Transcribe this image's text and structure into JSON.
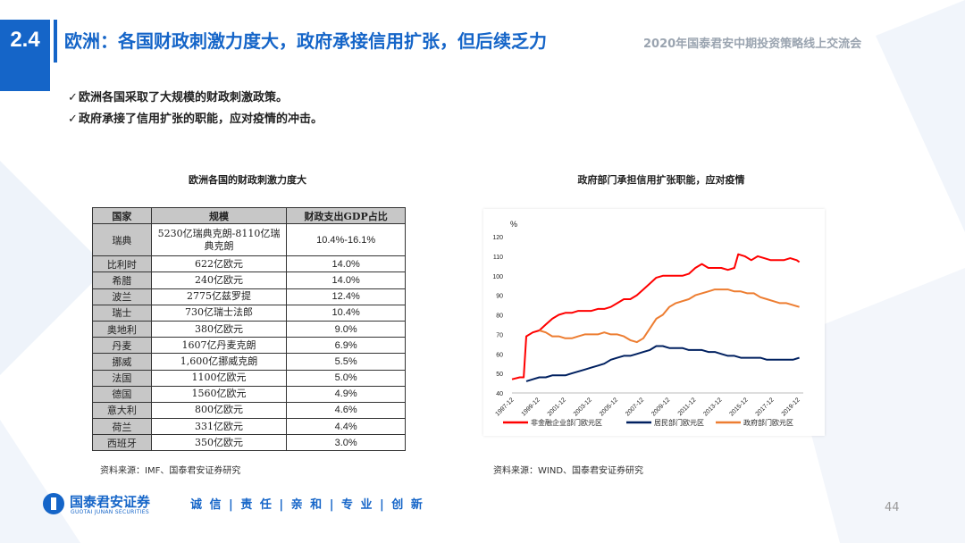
{
  "header": {
    "section": "2.4",
    "title": "欧洲：各国财政刺激力度大，政府承接信用扩张，但后续乏力",
    "event": "2020年国泰君安中期投资策略线上交流会"
  },
  "bullets": [
    "欧洲各国采取了大规模的财政刺激政策。",
    "政府承接了信用扩张的职能，应对疫情的冲击。"
  ],
  "table": {
    "title": "欧洲各国的财政刺激力度大",
    "columns": [
      "国家",
      "规模",
      "财政支出GDP占比"
    ],
    "rows": [
      {
        "country": "瑞典",
        "scale": "5230亿瑞典克朗-8110亿瑞典克朗",
        "ratio": "10.4%-16.1%"
      },
      {
        "country": "比利时",
        "scale": "622亿欧元",
        "ratio": "14.0%"
      },
      {
        "country": "希腊",
        "scale": "240亿欧元",
        "ratio": "14.0%"
      },
      {
        "country": "波兰",
        "scale": "2775亿兹罗提",
        "ratio": "12.4%"
      },
      {
        "country": "瑞士",
        "scale": "730亿瑞士法郎",
        "ratio": "10.4%"
      },
      {
        "country": "奥地利",
        "scale": "380亿欧元",
        "ratio": "9.0%"
      },
      {
        "country": "丹麦",
        "scale": "1607亿丹麦克朗",
        "ratio": "6.9%"
      },
      {
        "country": "挪威",
        "scale": "1,600亿挪威克朗",
        "ratio": "5.5%"
      },
      {
        "country": "法国",
        "scale": "1100亿欧元",
        "ratio": "5.0%"
      },
      {
        "country": "德国",
        "scale": "1560亿欧元",
        "ratio": "4.9%"
      },
      {
        "country": "意大利",
        "scale": "800亿欧元",
        "ratio": "4.6%"
      },
      {
        "country": "荷兰",
        "scale": "331亿欧元",
        "ratio": "4.4%"
      },
      {
        "country": "西班牙",
        "scale": "350亿欧元",
        "ratio": "3.0%"
      }
    ],
    "source": "资料来源：IMF、国泰君安证券研究"
  },
  "chart_title": "政府部门承担信用扩张职能，应对疫情",
  "chart_source": "资料来源：WIND、国泰君安证券研究",
  "chart_data": {
    "type": "line",
    "ylabel": "%",
    "ylim": [
      40,
      120
    ],
    "yticks": [
      40,
      50,
      60,
      70,
      80,
      90,
      100,
      110,
      120
    ],
    "x_range": [
      1997.9,
      2020.3
    ],
    "xticks": [
      "1997-12",
      "1999-12",
      "2001-12",
      "2003-12",
      "2005-12",
      "2007-12",
      "2009-12",
      "2011-12",
      "2013-12",
      "2015-12",
      "2017-12",
      "2019-12"
    ],
    "legend_position": "bottom",
    "grid": false,
    "series": [
      {
        "name": "非金融企业部门欧元区",
        "color": "#ff0000",
        "points": [
          [
            1997.9,
            47
          ],
          [
            1998.5,
            48
          ],
          [
            1998.8,
            48
          ],
          [
            1999.0,
            69
          ],
          [
            1999.5,
            71
          ],
          [
            2000.0,
            72
          ],
          [
            2000.5,
            75
          ],
          [
            2001.0,
            78
          ],
          [
            2001.5,
            80
          ],
          [
            2002.0,
            81
          ],
          [
            2002.5,
            81
          ],
          [
            2003.0,
            82
          ],
          [
            2003.5,
            82
          ],
          [
            2004.0,
            82
          ],
          [
            2004.5,
            83
          ],
          [
            2005.0,
            83
          ],
          [
            2005.5,
            84
          ],
          [
            2006.0,
            86
          ],
          [
            2006.5,
            88
          ],
          [
            2007.0,
            88
          ],
          [
            2007.5,
            90
          ],
          [
            2008.0,
            93
          ],
          [
            2008.5,
            96
          ],
          [
            2009.0,
            99
          ],
          [
            2009.5,
            100
          ],
          [
            2010.0,
            100
          ],
          [
            2010.5,
            100
          ],
          [
            2011.0,
            100
          ],
          [
            2011.5,
            101
          ],
          [
            2012.0,
            104
          ],
          [
            2012.5,
            106
          ],
          [
            2013.0,
            104
          ],
          [
            2013.5,
            104
          ],
          [
            2014.0,
            104
          ],
          [
            2014.5,
            103
          ],
          [
            2015.0,
            104
          ],
          [
            2015.3,
            111
          ],
          [
            2015.8,
            110
          ],
          [
            2016.3,
            108
          ],
          [
            2016.8,
            110
          ],
          [
            2017.3,
            109
          ],
          [
            2017.8,
            108
          ],
          [
            2018.3,
            108
          ],
          [
            2018.8,
            108
          ],
          [
            2019.3,
            109
          ],
          [
            2019.8,
            108
          ],
          [
            2020.0,
            107
          ]
        ]
      },
      {
        "name": "居民部门欧元区",
        "color": "#002060",
        "points": [
          [
            1999.0,
            46
          ],
          [
            1999.5,
            47
          ],
          [
            2000.0,
            48
          ],
          [
            2000.5,
            48
          ],
          [
            2001.0,
            49
          ],
          [
            2001.5,
            49
          ],
          [
            2002.0,
            49
          ],
          [
            2002.5,
            50
          ],
          [
            2003.0,
            51
          ],
          [
            2003.5,
            52
          ],
          [
            2004.0,
            53
          ],
          [
            2004.5,
            54
          ],
          [
            2005.0,
            55
          ],
          [
            2005.5,
            57
          ],
          [
            2006.0,
            58
          ],
          [
            2006.5,
            59
          ],
          [
            2007.0,
            59
          ],
          [
            2007.5,
            60
          ],
          [
            2008.0,
            61
          ],
          [
            2008.5,
            62
          ],
          [
            2009.0,
            64
          ],
          [
            2009.5,
            64
          ],
          [
            2010.0,
            63
          ],
          [
            2010.5,
            63
          ],
          [
            2011.0,
            63
          ],
          [
            2011.5,
            62
          ],
          [
            2012.0,
            62
          ],
          [
            2012.5,
            62
          ],
          [
            2013.0,
            61
          ],
          [
            2013.5,
            61
          ],
          [
            2014.0,
            60
          ],
          [
            2014.5,
            59
          ],
          [
            2015.0,
            59
          ],
          [
            2015.5,
            58
          ],
          [
            2016.0,
            58
          ],
          [
            2016.5,
            58
          ],
          [
            2017.0,
            58
          ],
          [
            2017.5,
            57
          ],
          [
            2018.0,
            57
          ],
          [
            2018.5,
            57
          ],
          [
            2019.0,
            57
          ],
          [
            2019.5,
            57
          ],
          [
            2020.0,
            58
          ]
        ]
      },
      {
        "name": "政府部门欧元区",
        "color": "#ed7d31",
        "points": [
          [
            2000.0,
            72
          ],
          [
            2000.5,
            71
          ],
          [
            2001.0,
            69
          ],
          [
            2001.5,
            69
          ],
          [
            2002.0,
            68
          ],
          [
            2002.5,
            68
          ],
          [
            2003.0,
            69
          ],
          [
            2003.5,
            70
          ],
          [
            2004.0,
            70
          ],
          [
            2004.5,
            70
          ],
          [
            2005.0,
            71
          ],
          [
            2005.5,
            70
          ],
          [
            2006.0,
            70
          ],
          [
            2006.5,
            69
          ],
          [
            2007.0,
            67
          ],
          [
            2007.5,
            66
          ],
          [
            2008.0,
            68
          ],
          [
            2008.5,
            73
          ],
          [
            2009.0,
            78
          ],
          [
            2009.5,
            80
          ],
          [
            2010.0,
            84
          ],
          [
            2010.5,
            86
          ],
          [
            2011.0,
            87
          ],
          [
            2011.5,
            88
          ],
          [
            2012.0,
            90
          ],
          [
            2012.5,
            91
          ],
          [
            2013.0,
            92
          ],
          [
            2013.5,
            93
          ],
          [
            2014.0,
            93
          ],
          [
            2014.5,
            93
          ],
          [
            2015.0,
            92
          ],
          [
            2015.5,
            92
          ],
          [
            2016.0,
            91
          ],
          [
            2016.5,
            91
          ],
          [
            2017.0,
            89
          ],
          [
            2017.5,
            88
          ],
          [
            2018.0,
            87
          ],
          [
            2018.5,
            86
          ],
          [
            2019.0,
            86
          ],
          [
            2019.5,
            85
          ],
          [
            2020.0,
            84
          ]
        ]
      }
    ]
  },
  "footer": {
    "logo_cn": "国泰君安证券",
    "logo_en": "GUOTAI JUNAN SECURITIES",
    "slogan": "诚 信 | 责 任 | 亲 和 | 专 业 | 创 新",
    "page": "44"
  },
  "colors": {
    "brand_blue": "#1565c8",
    "header_gray": "#c7c7c7"
  }
}
